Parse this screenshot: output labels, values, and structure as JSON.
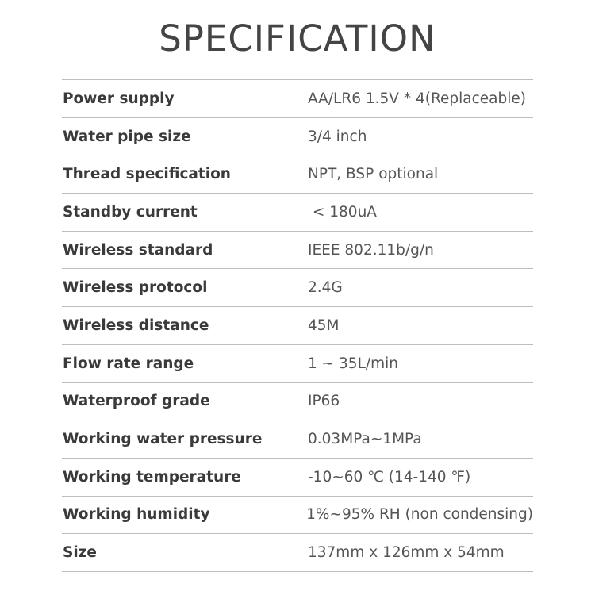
{
  "title": "SPECIFICATION",
  "specs": [
    {
      "label": "Power supply",
      "value": "AA/LR6 1.5V * 4(Replaceable)"
    },
    {
      "label": "Water pipe size",
      "value": "3/4 inch"
    },
    {
      "label": "Thread specification",
      "value": "NPT, BSP optional"
    },
    {
      "label": "Standby current",
      "value": " < 180uA"
    },
    {
      "label": "Wireless standard",
      "value": "IEEE 802.11b/g/n"
    },
    {
      "label": "Wireless protocol",
      "value": "2.4G"
    },
    {
      "label": "Wireless distance",
      "value": "45M"
    },
    {
      "label": "Flow rate range",
      "value": "1 ~ 35L/min"
    },
    {
      "label": "Waterproof grade",
      "value": "IP66"
    },
    {
      "label": "Working water pressure",
      "value": "0.03MPa~1MPa"
    },
    {
      "label": "Working temperature",
      "value": "-10~60 ℃ (14-140 ℉)"
    },
    {
      "label": "Working humidity",
      "value": "1%~95% RH (non condensing)"
    },
    {
      "label": "Size",
      "value": "137mm x 126mm x 54mm"
    }
  ]
}
